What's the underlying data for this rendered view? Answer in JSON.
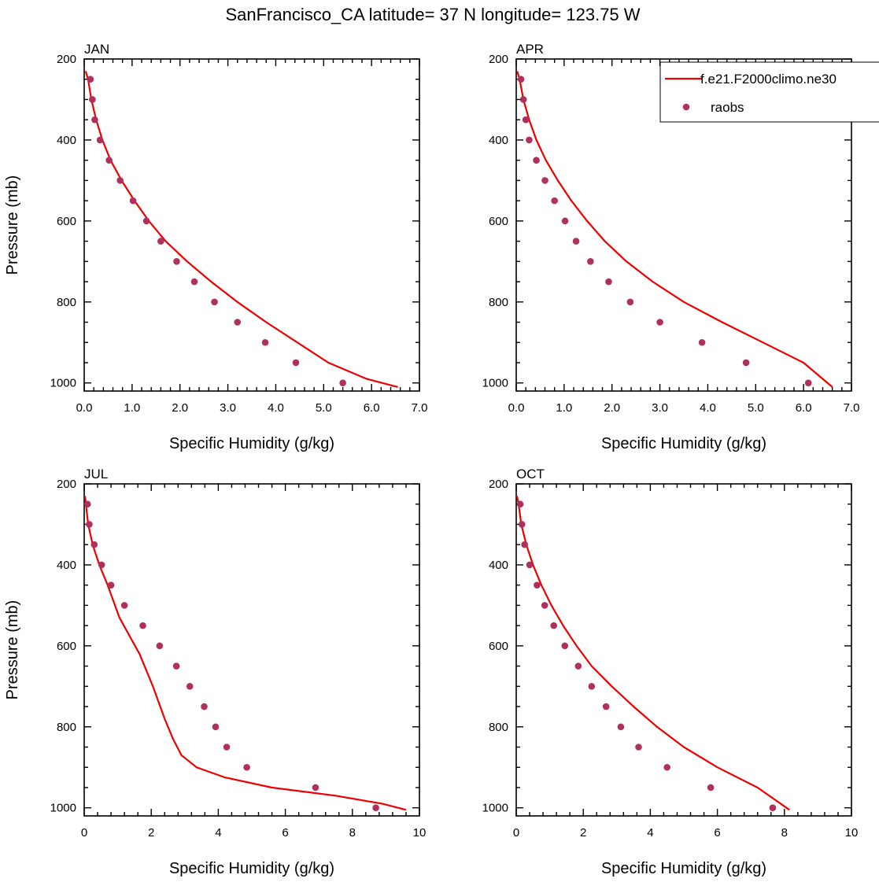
{
  "title": "SanFrancisco_CA  latitude= 37 N longitude= 123.75 W",
  "colors": {
    "model": "#ee0000",
    "obs": "#b0305c",
    "axes": "#000000",
    "background": "#ffffff"
  },
  "legend": {
    "placement": "top-right of APR panel",
    "entries": [
      {
        "label": "f.e21.F2000climo.ne30",
        "style": "line",
        "color": "#ee0000"
      },
      {
        "label": "raobs",
        "style": "marker",
        "color": "#b0305c"
      }
    ]
  },
  "chart_data": [
    {
      "type": "line",
      "panel": "JAN",
      "xlabel": "Specific Humidity (g/kg)",
      "ylabel": "Pressure (mb)",
      "xlim": [
        0,
        7
      ],
      "ylim": [
        200,
        1020
      ],
      "y_inverted": true,
      "xticks": [
        0,
        1,
        2,
        3,
        4,
        5,
        6,
        7
      ],
      "xtick_labels": [
        "0.0",
        "1.0",
        "2.0",
        "3.0",
        "4.0",
        "5.0",
        "6.0",
        "7.0"
      ],
      "yticks": [
        200,
        400,
        600,
        800,
        1000
      ],
      "ytick_labels": [
        "200",
        "400",
        "600",
        "800",
        "1000"
      ],
      "series": [
        {
          "name": "f.e21.F2000climo.ne30",
          "kind": "line",
          "x": [
            0.03,
            0.08,
            0.15,
            0.25,
            0.38,
            0.55,
            0.78,
            1.05,
            1.35,
            1.7,
            2.15,
            2.65,
            3.2,
            3.8,
            4.45,
            5.1,
            5.9,
            6.55
          ],
          "y": [
            230,
            250,
            300,
            350,
            400,
            450,
            500,
            550,
            600,
            650,
            700,
            750,
            800,
            850,
            900,
            950,
            990,
            1010
          ]
        },
        {
          "name": "raobs",
          "kind": "scatter",
          "x": [
            0.13,
            0.17,
            0.22,
            0.33,
            0.52,
            0.75,
            1.02,
            1.3,
            1.6,
            1.93,
            2.3,
            2.72,
            3.2,
            3.78,
            4.42,
            5.4
          ],
          "y": [
            250,
            300,
            350,
            400,
            450,
            500,
            550,
            600,
            650,
            700,
            750,
            800,
            850,
            900,
            950,
            1000
          ]
        }
      ]
    },
    {
      "type": "line",
      "panel": "APR",
      "xlabel": "Specific Humidity (g/kg)",
      "ylabel": "",
      "xlim": [
        0,
        7
      ],
      "ylim": [
        200,
        1020
      ],
      "y_inverted": true,
      "xticks": [
        0,
        1,
        2,
        3,
        4,
        5,
        6,
        7
      ],
      "xtick_labels": [
        "0.0",
        "1.0",
        "2.0",
        "3.0",
        "4.0",
        "5.0",
        "6.0",
        "7.0"
      ],
      "yticks": [
        200,
        400,
        600,
        800,
        1000
      ],
      "ytick_labels": [
        "200",
        "400",
        "600",
        "800",
        "1000"
      ],
      "series": [
        {
          "name": "f.e21.F2000climo.ne30",
          "kind": "line",
          "x": [
            0.02,
            0.07,
            0.15,
            0.27,
            0.42,
            0.62,
            0.87,
            1.15,
            1.48,
            1.85,
            2.3,
            2.85,
            3.5,
            4.3,
            5.15,
            6.0,
            6.6
          ],
          "y": [
            230,
            250,
            300,
            350,
            400,
            450,
            500,
            550,
            600,
            650,
            700,
            750,
            800,
            850,
            900,
            950,
            1010
          ]
        },
        {
          "name": "raobs",
          "kind": "scatter",
          "x": [
            0.1,
            0.15,
            0.2,
            0.27,
            0.42,
            0.6,
            0.8,
            1.02,
            1.25,
            1.55,
            1.93,
            2.38,
            3.0,
            3.88,
            4.8,
            6.1
          ],
          "y": [
            250,
            300,
            350,
            400,
            450,
            500,
            550,
            600,
            650,
            700,
            750,
            800,
            850,
            900,
            950,
            1000
          ]
        }
      ]
    },
    {
      "type": "line",
      "panel": "JUL",
      "xlabel": "Specific Humidity (g/kg)",
      "ylabel": "Pressure (mb)",
      "xlim": [
        0,
        10
      ],
      "ylim": [
        200,
        1020
      ],
      "y_inverted": true,
      "xticks": [
        0,
        2,
        4,
        6,
        8,
        10
      ],
      "xtick_labels": [
        "0",
        "2",
        "4",
        "6",
        "8",
        "10"
      ],
      "yticks": [
        200,
        400,
        600,
        800,
        1000
      ],
      "ytick_labels": [
        "200",
        "400",
        "600",
        "800",
        "1000"
      ],
      "series": [
        {
          "name": "f.e21.F2000climo.ne30",
          "kind": "line",
          "x": [
            0.02,
            0.05,
            0.12,
            0.25,
            0.45,
            0.7,
            1.05,
            1.65,
            2.05,
            2.4,
            2.65,
            2.9,
            3.35,
            4.2,
            5.6,
            7.5,
            8.9,
            9.6
          ],
          "y": [
            230,
            250,
            300,
            350,
            400,
            450,
            530,
            620,
            700,
            780,
            830,
            870,
            900,
            925,
            950,
            970,
            990,
            1005
          ]
        },
        {
          "name": "raobs",
          "kind": "scatter",
          "x": [
            0.1,
            0.15,
            0.3,
            0.52,
            0.8,
            1.2,
            1.75,
            2.25,
            2.75,
            3.15,
            3.58,
            3.92,
            4.25,
            4.85,
            6.9,
            8.7
          ],
          "y": [
            250,
            300,
            350,
            400,
            450,
            500,
            550,
            600,
            650,
            700,
            750,
            800,
            850,
            900,
            950,
            1000
          ]
        }
      ]
    },
    {
      "type": "line",
      "panel": "OCT",
      "xlabel": "Specific Humidity (g/kg)",
      "ylabel": "",
      "xlim": [
        0,
        10
      ],
      "ylim": [
        200,
        1020
      ],
      "y_inverted": true,
      "xticks": [
        0,
        2,
        4,
        6,
        8,
        10
      ],
      "xtick_labels": [
        "0",
        "2",
        "4",
        "6",
        "8",
        "10"
      ],
      "yticks": [
        200,
        400,
        600,
        800,
        1000
      ],
      "ytick_labels": [
        "200",
        "400",
        "600",
        "800",
        "1000"
      ],
      "series": [
        {
          "name": "f.e21.F2000climo.ne30",
          "kind": "line",
          "x": [
            0.02,
            0.07,
            0.15,
            0.3,
            0.5,
            0.75,
            1.05,
            1.4,
            1.8,
            2.25,
            2.85,
            3.5,
            4.2,
            5.0,
            6.0,
            7.2,
            8.15
          ],
          "y": [
            230,
            250,
            300,
            350,
            400,
            450,
            500,
            550,
            600,
            650,
            700,
            750,
            800,
            850,
            900,
            950,
            1005
          ]
        },
        {
          "name": "raobs",
          "kind": "scatter",
          "x": [
            0.12,
            0.17,
            0.25,
            0.4,
            0.62,
            0.85,
            1.12,
            1.45,
            1.85,
            2.25,
            2.68,
            3.12,
            3.65,
            4.5,
            5.8,
            7.65
          ],
          "y": [
            250,
            300,
            350,
            400,
            450,
            500,
            550,
            600,
            650,
            700,
            750,
            800,
            850,
            900,
            950,
            1000
          ]
        }
      ]
    }
  ]
}
